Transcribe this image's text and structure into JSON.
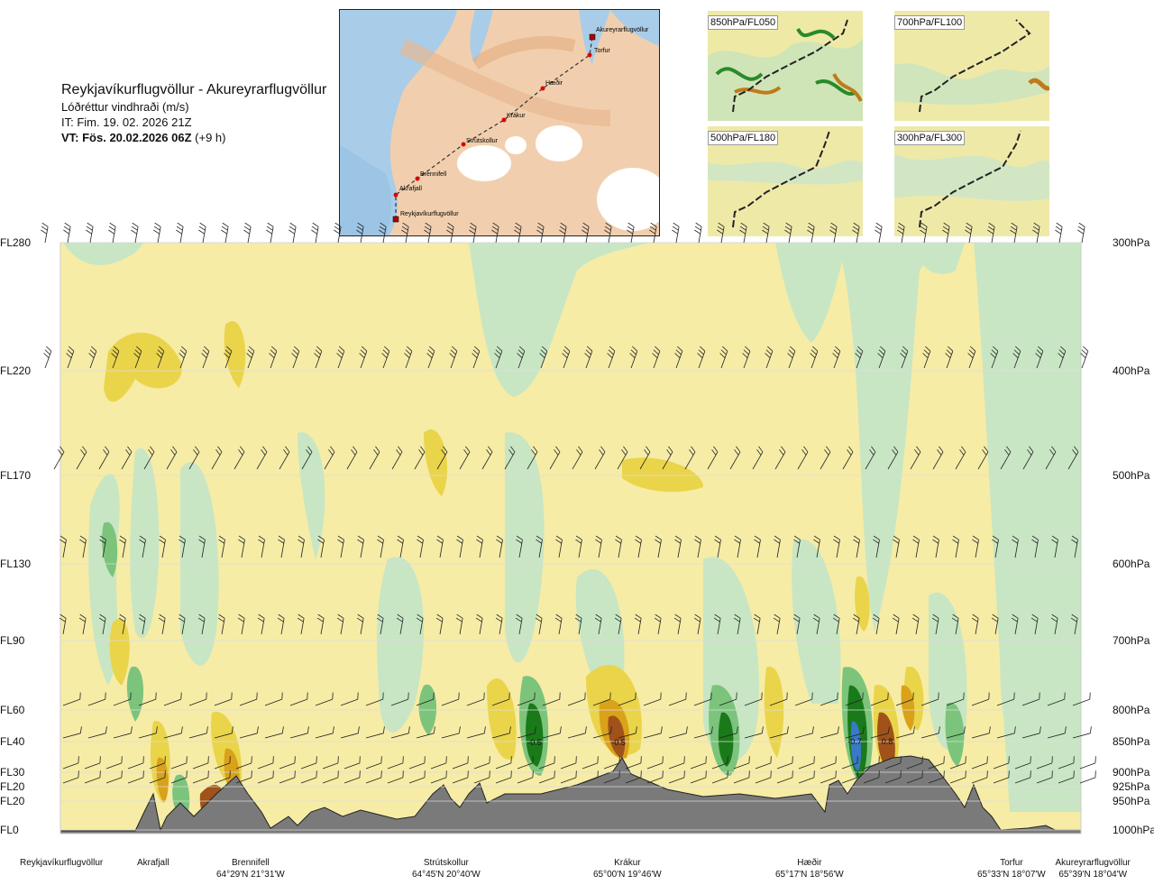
{
  "header": {
    "title": "Reykjavíkurflugvöllur - Akureyrarflugvöllur",
    "subtitle": "Lóðréttur vindhraði (m/s)",
    "issue_time": "IT: Fim. 19. 02. 2026 21Z",
    "valid_time_bold": "VT: Fös. 20.02.2026 06Z",
    "valid_time_offset": "(+9 h)"
  },
  "map": {
    "places": [
      "Akureyrarflugvöllur",
      "Torfur",
      "Hæðir",
      "Krákur",
      "Strútskollur",
      "Brennifell",
      "Akrafjall",
      "Reykjavíkurflugvöllur"
    ]
  },
  "thumbnails": [
    {
      "label": "850hPa/FL050"
    },
    {
      "label": "700hPa/FL100"
    },
    {
      "label": "500hPa/FL180"
    },
    {
      "label": "300hPa/FL300"
    }
  ],
  "chart_data": {
    "type": "heatmap",
    "title": "Lóðréttur vindhraði (m/s)",
    "levels": [
      {
        "fl": "FL280",
        "hpa": "300hPa"
      },
      {
        "fl": "FL220",
        "hpa": "400hPa"
      },
      {
        "fl": "FL170",
        "hpa": "500hPa"
      },
      {
        "fl": "FL130",
        "hpa": "600hPa"
      },
      {
        "fl": "FL90",
        "hpa": "700hPa"
      },
      {
        "fl": "FL60",
        "hpa": "800hPa"
      },
      {
        "fl": "FL40",
        "hpa": "850hPa"
      },
      {
        "fl": "FL30",
        "hpa": "900hPa"
      },
      {
        "fl": "FL20",
        "hpa": "925hPa"
      },
      {
        "fl": "FL20",
        "hpa": "950hPa"
      },
      {
        "fl": "FL0",
        "hpa": "1000hPa"
      }
    ],
    "waypoints": [
      {
        "name": "Reykjavíkurflugvöllur",
        "coords": ""
      },
      {
        "name": "Akrafjall",
        "coords": ""
      },
      {
        "name": "Brennifell",
        "coords": "64°29'N 21°31'W"
      },
      {
        "name": "Strútskollur",
        "coords": "64°45'N 20°40'W"
      },
      {
        "name": "Krákur",
        "coords": "65°00'N 19°46'W"
      },
      {
        "name": "Hæðir",
        "coords": "65°17'N 18°56'W"
      },
      {
        "name": "Torfur",
        "coords": "65°33'N 18°07'W"
      },
      {
        "name": "Akureyrarflugvöllur",
        "coords": "65°39'N 18°04'W"
      }
    ],
    "annotations": [
      "-0.5",
      "-0.5",
      "-0.7",
      "0.8"
    ],
    "colors": {
      "strong_down": "#1a7a1a",
      "down": "#7cc47c",
      "weak_down": "#c8e6c4",
      "neutral": "#f6eca6",
      "weak_up": "#ead44a",
      "up": "#d9a21a",
      "strong_up": "#a0521a",
      "very_strong_down": "#3a78c8",
      "terrain": "#7a7a7a"
    }
  }
}
